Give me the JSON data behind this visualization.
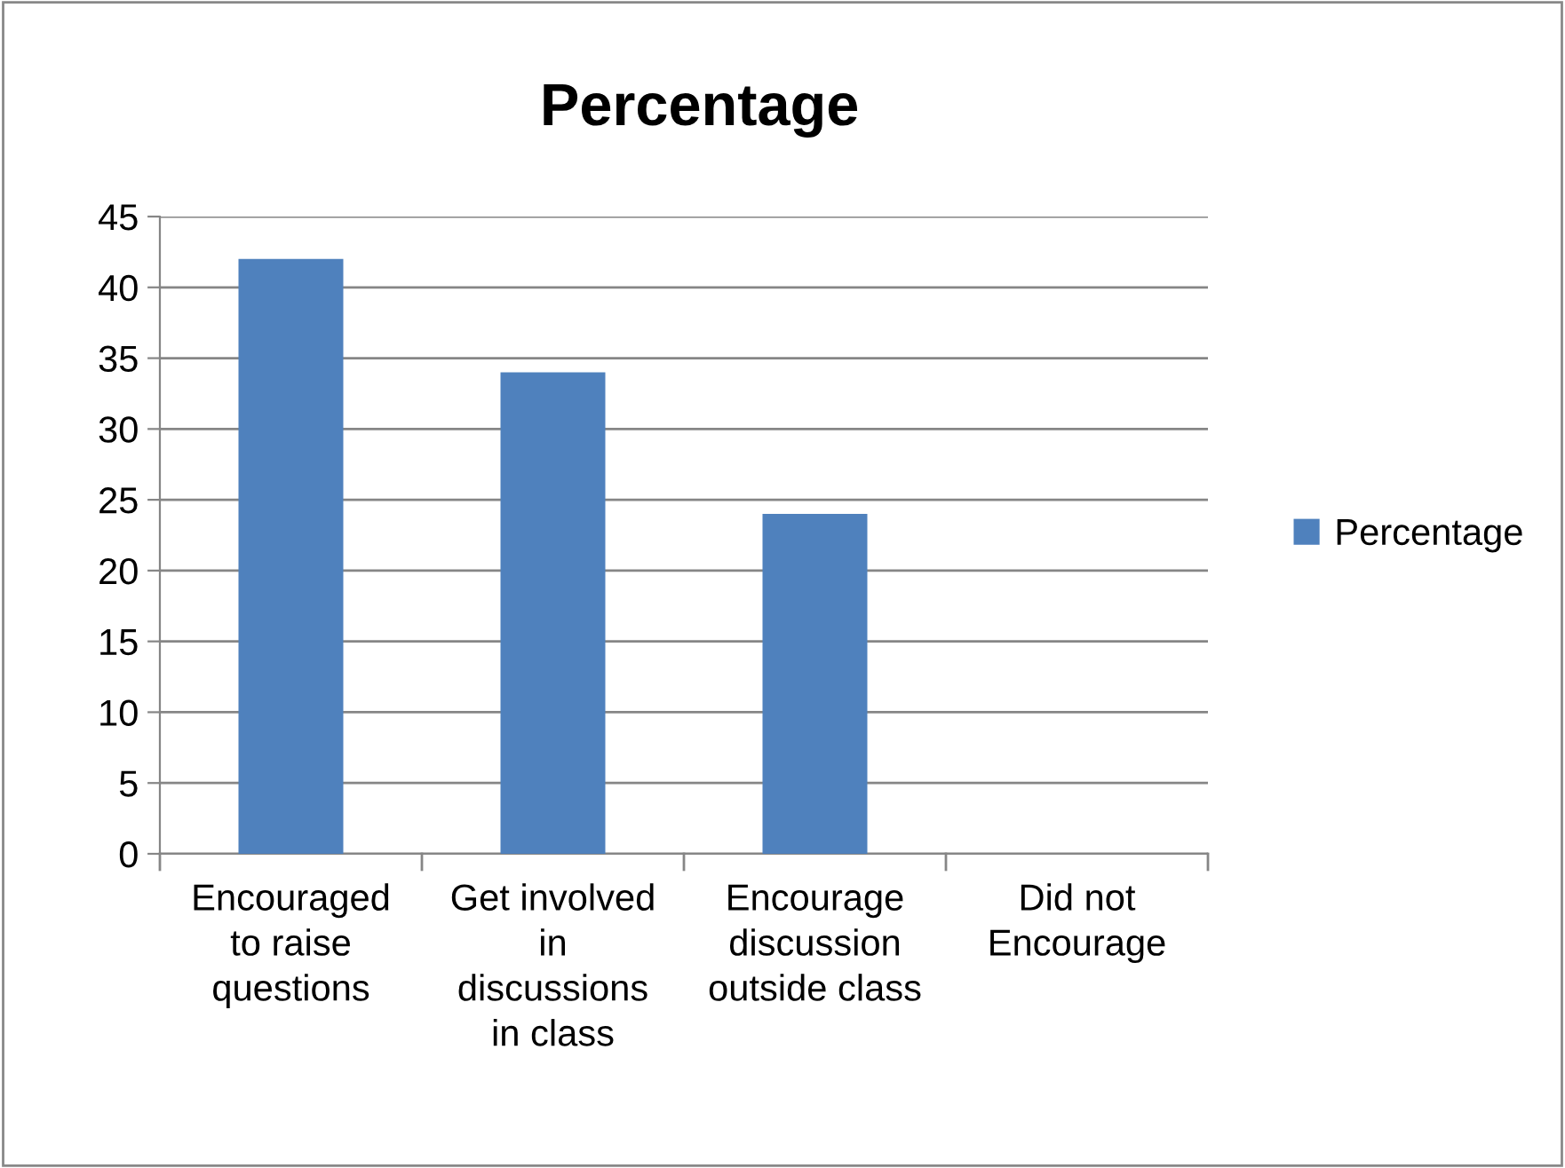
{
  "chart_data": {
    "type": "bar",
    "title": "Percentage",
    "categories": [
      "Encouraged\nto raise\nquestions",
      "Get involved\nin\ndiscussions\nin class",
      "Encourage\ndiscussion\noutside class",
      "Did not\nEncourage"
    ],
    "series": [
      {
        "name": "Percentage",
        "color": "#4f81bd",
        "values": [
          42,
          34,
          24,
          0
        ]
      }
    ],
    "ylim": [
      0,
      45
    ],
    "yticks": [
      0,
      5,
      10,
      15,
      20,
      25,
      30,
      35,
      40,
      45
    ],
    "grid": "y",
    "legend": "right"
  }
}
